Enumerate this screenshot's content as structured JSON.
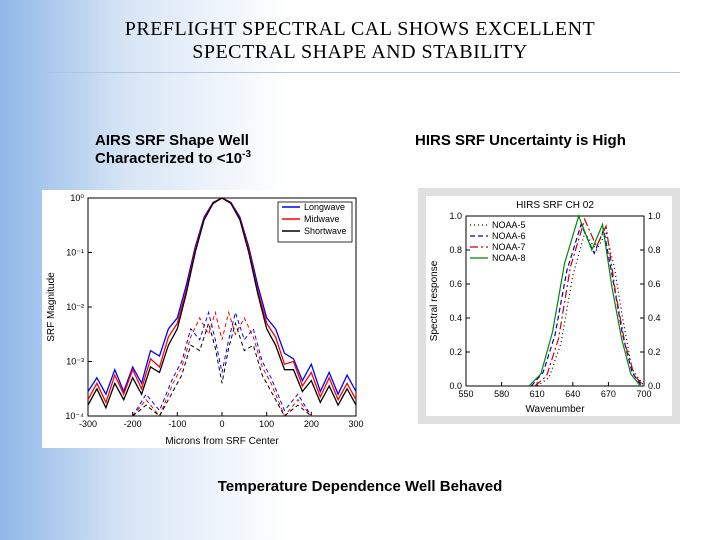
{
  "title_line1": "PREFLIGHT SPECTRAL CAL SHOWS EXCELLENT",
  "title_line2": "SPECTRAL SHAPE AND STABILITY",
  "left_caption_prefix": "AIRS SRF Shape Well Characterized to <10",
  "left_caption_exp": "-3",
  "right_caption": "HIRS SRF Uncertainty is High",
  "bottom_caption": "Temperature Dependence Well Behaved",
  "left_chart": {
    "type": "line",
    "xlabel": "Microns from SRF Center",
    "ylabel": "SRF Magnitude",
    "xlim": [
      -300,
      300
    ],
    "xticks": [
      -300,
      -200,
      -100,
      0,
      100,
      200,
      300
    ],
    "ylim_log": [
      -4,
      0
    ],
    "yticks_log": [
      -4,
      -3,
      -2,
      -1,
      0
    ],
    "ytick_labels": [
      "10⁻⁴",
      "10⁻³",
      "10⁻²",
      "10⁻¹",
      "10⁰"
    ],
    "grid_color": "#cccccc",
    "background_color": "#ffffff",
    "axis_color": "#000000",
    "legend": {
      "position": "upper-right",
      "box_color": "#000000",
      "items": [
        {
          "label": "Longwave",
          "color": "#0000ff",
          "dash": "solid"
        },
        {
          "label": "Midwave",
          "color": "#ff0000",
          "dash": "solid"
        },
        {
          "label": "Shortwave",
          "color": "#000000",
          "dash": "solid"
        }
      ]
    },
    "series": [
      {
        "name": "Longwave",
        "color": "#0000ff",
        "dash": "solid",
        "width": 1.3,
        "xy": [
          [
            -300,
            -3.55
          ],
          [
            -280,
            -3.3
          ],
          [
            -260,
            -3.6
          ],
          [
            -240,
            -3.15
          ],
          [
            -220,
            -3.55
          ],
          [
            -200,
            -3.1
          ],
          [
            -180,
            -3.4
          ],
          [
            -160,
            -2.8
          ],
          [
            -140,
            -2.9
          ],
          [
            -120,
            -2.4
          ],
          [
            -100,
            -2.2
          ],
          [
            -80,
            -1.6
          ],
          [
            -60,
            -0.9
          ],
          [
            -40,
            -0.35
          ],
          [
            -20,
            -0.08
          ],
          [
            0,
            0.0
          ],
          [
            20,
            -0.08
          ],
          [
            40,
            -0.35
          ],
          [
            60,
            -0.9
          ],
          [
            80,
            -1.6
          ],
          [
            100,
            -2.2
          ],
          [
            120,
            -2.4
          ],
          [
            140,
            -2.85
          ],
          [
            160,
            -2.95
          ],
          [
            180,
            -3.35
          ],
          [
            200,
            -3.05
          ],
          [
            220,
            -3.55
          ],
          [
            240,
            -3.2
          ],
          [
            260,
            -3.6
          ],
          [
            280,
            -3.25
          ],
          [
            300,
            -3.55
          ]
        ]
      },
      {
        "name": "Midwave",
        "color": "#ff0000",
        "dash": "solid",
        "width": 1.3,
        "xy": [
          [
            -300,
            -3.7
          ],
          [
            -280,
            -3.4
          ],
          [
            -260,
            -3.75
          ],
          [
            -240,
            -3.25
          ],
          [
            -220,
            -3.6
          ],
          [
            -200,
            -3.15
          ],
          [
            -180,
            -3.5
          ],
          [
            -160,
            -2.95
          ],
          [
            -140,
            -3.1
          ],
          [
            -120,
            -2.55
          ],
          [
            -100,
            -2.3
          ],
          [
            -80,
            -1.7
          ],
          [
            -60,
            -0.95
          ],
          [
            -40,
            -0.38
          ],
          [
            -20,
            -0.09
          ],
          [
            0,
            0.0
          ],
          [
            20,
            -0.09
          ],
          [
            40,
            -0.38
          ],
          [
            60,
            -0.95
          ],
          [
            80,
            -1.7
          ],
          [
            100,
            -2.3
          ],
          [
            120,
            -2.55
          ],
          [
            140,
            -3.05
          ],
          [
            160,
            -3.0
          ],
          [
            180,
            -3.45
          ],
          [
            200,
            -3.2
          ],
          [
            220,
            -3.65
          ],
          [
            240,
            -3.3
          ],
          [
            260,
            -3.7
          ],
          [
            280,
            -3.4
          ],
          [
            300,
            -3.7
          ]
        ]
      },
      {
        "name": "Shortwave",
        "color": "#000000",
        "dash": "solid",
        "width": 1.3,
        "xy": [
          [
            -300,
            -3.8
          ],
          [
            -280,
            -3.5
          ],
          [
            -260,
            -3.85
          ],
          [
            -240,
            -3.4
          ],
          [
            -220,
            -3.7
          ],
          [
            -200,
            -3.3
          ],
          [
            -180,
            -3.6
          ],
          [
            -160,
            -3.1
          ],
          [
            -140,
            -3.2
          ],
          [
            -120,
            -2.7
          ],
          [
            -100,
            -2.4
          ],
          [
            -80,
            -1.75
          ],
          [
            -60,
            -1.0
          ],
          [
            -40,
            -0.4
          ],
          [
            -20,
            -0.1
          ],
          [
            0,
            0.0
          ],
          [
            20,
            -0.1
          ],
          [
            40,
            -0.4
          ],
          [
            60,
            -1.0
          ],
          [
            80,
            -1.75
          ],
          [
            100,
            -2.4
          ],
          [
            120,
            -2.7
          ],
          [
            140,
            -3.15
          ],
          [
            160,
            -3.15
          ],
          [
            180,
            -3.55
          ],
          [
            200,
            -3.35
          ],
          [
            220,
            -3.75
          ],
          [
            240,
            -3.45
          ],
          [
            260,
            -3.8
          ],
          [
            280,
            -3.5
          ],
          [
            300,
            -3.8
          ]
        ]
      },
      {
        "name": "Longwave-dash",
        "color": "#0000ff",
        "dash": "4,3",
        "width": 1.0,
        "xy": [
          [
            -200,
            -4.0
          ],
          [
            -170,
            -3.6
          ],
          [
            -140,
            -3.9
          ],
          [
            -110,
            -3.3
          ],
          [
            -90,
            -3.0
          ],
          [
            -70,
            -2.4
          ],
          [
            -50,
            -2.6
          ],
          [
            -30,
            -2.1
          ],
          [
            -15,
            -2.6
          ],
          [
            0,
            -3.2
          ],
          [
            15,
            -2.6
          ],
          [
            30,
            -2.1
          ],
          [
            50,
            -2.6
          ],
          [
            70,
            -2.4
          ],
          [
            90,
            -3.0
          ],
          [
            110,
            -3.3
          ],
          [
            140,
            -3.9
          ],
          [
            170,
            -3.6
          ],
          [
            200,
            -4.0
          ]
        ]
      },
      {
        "name": "Midwave-dash",
        "color": "#ff0000",
        "dash": "4,3",
        "width": 1.0,
        "xy": [
          [
            -200,
            -4.0
          ],
          [
            -170,
            -3.7
          ],
          [
            -140,
            -4.0
          ],
          [
            -110,
            -3.4
          ],
          [
            -90,
            -3.1
          ],
          [
            -70,
            -2.55
          ],
          [
            -50,
            -2.2
          ],
          [
            -30,
            -2.5
          ],
          [
            -15,
            -2.1
          ],
          [
            0,
            -2.6
          ],
          [
            15,
            -2.1
          ],
          [
            30,
            -2.5
          ],
          [
            50,
            -2.2
          ],
          [
            70,
            -2.55
          ],
          [
            90,
            -3.1
          ],
          [
            110,
            -3.4
          ],
          [
            140,
            -4.0
          ],
          [
            170,
            -3.7
          ],
          [
            200,
            -4.0
          ]
        ]
      },
      {
        "name": "Shortwave-dash",
        "color": "#000000",
        "dash": "4,3",
        "width": 1.0,
        "xy": [
          [
            -200,
            -4.0
          ],
          [
            -170,
            -3.8
          ],
          [
            -140,
            -4.0
          ],
          [
            -110,
            -3.55
          ],
          [
            -90,
            -3.25
          ],
          [
            -70,
            -2.7
          ],
          [
            -50,
            -2.8
          ],
          [
            -30,
            -2.3
          ],
          [
            -15,
            -2.75
          ],
          [
            0,
            -3.4
          ],
          [
            15,
            -2.75
          ],
          [
            30,
            -2.3
          ],
          [
            50,
            -2.8
          ],
          [
            70,
            -2.7
          ],
          [
            90,
            -3.25
          ],
          [
            110,
            -3.55
          ],
          [
            140,
            -4.0
          ],
          [
            170,
            -3.8
          ],
          [
            200,
            -4.0
          ]
        ]
      }
    ]
  },
  "right_chart": {
    "type": "line",
    "title": "HIRS SRF CH 02",
    "xlabel": "Wavenumber",
    "ylabel": "Spectral response",
    "xlim": [
      550,
      700
    ],
    "xticks": [
      550,
      580,
      610,
      640,
      670,
      700
    ],
    "ylim": [
      0.0,
      1.0
    ],
    "yticks": [
      0.0,
      0.2,
      0.4,
      0.6,
      0.8,
      1.0
    ],
    "right_yticks": [
      0.0,
      0.2,
      0.4,
      0.6,
      0.8,
      1.0
    ],
    "grid": false,
    "background_color": "#ffffff",
    "axis_color": "#000000",
    "legend": {
      "position": "upper-left",
      "items": [
        {
          "label": "NOAA-5",
          "color": "#000000",
          "dash": "1,3"
        },
        {
          "label": "NOAA-6",
          "color": "#0000cc",
          "dash": "5,3"
        },
        {
          "label": "NOAA-7",
          "color": "#cc0000",
          "dash": "8,3,2,3"
        },
        {
          "label": "NOAA-8",
          "color": "#008800",
          "dash": "solid"
        }
      ]
    },
    "series": [
      {
        "name": "NOAA-5",
        "color": "#000000",
        "dash": "1,3",
        "width": 1.2,
        "xy": [
          [
            610,
            0.0
          ],
          [
            620,
            0.05
          ],
          [
            630,
            0.25
          ],
          [
            640,
            0.65
          ],
          [
            650,
            0.9
          ],
          [
            660,
            0.8
          ],
          [
            668,
            0.9
          ],
          [
            675,
            0.7
          ],
          [
            682,
            0.4
          ],
          [
            690,
            0.1
          ],
          [
            700,
            0.0
          ]
        ]
      },
      {
        "name": "NOAA-6",
        "color": "#0000cc",
        "dash": "5,3",
        "width": 1.2,
        "xy": [
          [
            605,
            0.0
          ],
          [
            615,
            0.08
          ],
          [
            625,
            0.3
          ],
          [
            635,
            0.68
          ],
          [
            647,
            0.95
          ],
          [
            658,
            0.78
          ],
          [
            666,
            0.92
          ],
          [
            674,
            0.62
          ],
          [
            682,
            0.3
          ],
          [
            690,
            0.08
          ],
          [
            698,
            0.0
          ]
        ]
      },
      {
        "name": "NOAA-7",
        "color": "#cc0000",
        "dash": "8,3,2,3",
        "width": 1.2,
        "xy": [
          [
            608,
            0.0
          ],
          [
            618,
            0.06
          ],
          [
            628,
            0.28
          ],
          [
            638,
            0.7
          ],
          [
            650,
            0.98
          ],
          [
            660,
            0.82
          ],
          [
            668,
            0.94
          ],
          [
            676,
            0.55
          ],
          [
            684,
            0.25
          ],
          [
            692,
            0.06
          ],
          [
            700,
            0.0
          ]
        ]
      },
      {
        "name": "NOAA-8",
        "color": "#008800",
        "dash": "solid",
        "width": 1.2,
        "xy": [
          [
            603,
            0.0
          ],
          [
            613,
            0.07
          ],
          [
            623,
            0.32
          ],
          [
            633,
            0.72
          ],
          [
            645,
            1.0
          ],
          [
            656,
            0.8
          ],
          [
            665,
            0.95
          ],
          [
            673,
            0.58
          ],
          [
            681,
            0.28
          ],
          [
            689,
            0.07
          ],
          [
            697,
            0.0
          ]
        ]
      }
    ]
  }
}
